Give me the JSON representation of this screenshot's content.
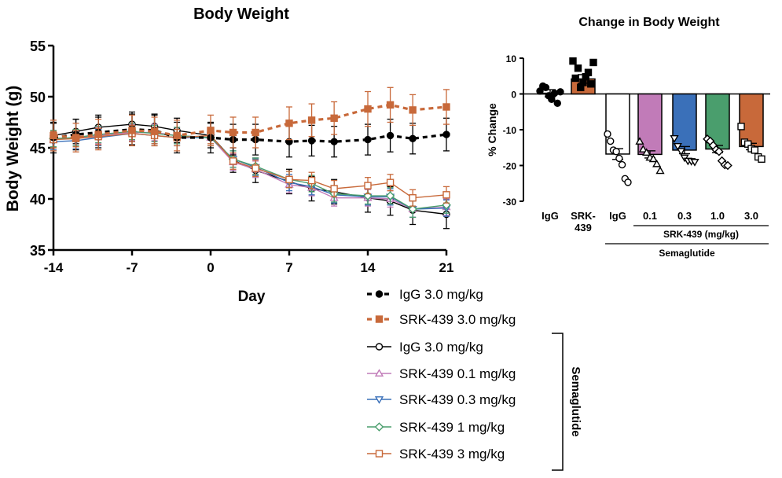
{
  "chart_data": [
    {
      "type": "line",
      "title": "Body Weight",
      "xlabel": "Day",
      "ylabel": "Body Weight (g)",
      "xlim": [
        -14,
        21
      ],
      "ylim": [
        35,
        55
      ],
      "xticks": [
        -14,
        -7,
        0,
        7,
        14,
        21
      ],
      "xtick_labels": [
        "-14",
        "-7",
        "0",
        "7",
        "14",
        "21"
      ],
      "yticks": [
        35,
        40,
        45,
        50,
        55
      ],
      "ytick_labels": [
        "35",
        "40",
        "45",
        "50",
        "55"
      ],
      "x": [
        -14,
        -12,
        -10,
        -7,
        -5,
        -3,
        0,
        2,
        4,
        7,
        9,
        11,
        14,
        16,
        18,
        21
      ],
      "legend_group_label": "Semaglutide",
      "series": [
        {
          "name": "IgG 3.0 mg/kg",
          "color": "#000000",
          "style": "dashed",
          "marker": "filled-circle",
          "values": [
            46.0,
            46.3,
            46.5,
            46.8,
            46.7,
            46.0,
            46.0,
            45.8,
            45.8,
            45.6,
            45.7,
            45.6,
            45.8,
            46.2,
            45.9,
            46.3
          ],
          "errors": [
            1.5,
            1.5,
            1.5,
            1.5,
            1.5,
            1.5,
            1.5,
            1.5,
            1.5,
            1.5,
            1.5,
            1.5,
            1.5,
            1.6,
            1.5,
            1.6
          ]
        },
        {
          "name": "SRK-439 3.0 mg/kg",
          "color": "#c8693a",
          "style": "dashed",
          "marker": "filled-square",
          "values": [
            46.2,
            46.0,
            46.3,
            46.7,
            46.6,
            46.2,
            46.7,
            46.5,
            46.5,
            47.4,
            47.7,
            47.9,
            48.8,
            49.2,
            48.7,
            49.0
          ],
          "errors": [
            1.5,
            1.4,
            1.5,
            1.5,
            1.4,
            1.5,
            1.5,
            1.5,
            1.5,
            1.6,
            1.6,
            1.6,
            1.7,
            1.7,
            1.5,
            1.7
          ]
        },
        {
          "name": "IgG 3.0 mg/kg",
          "color": "#000000",
          "style": "solid",
          "marker": "open-circle",
          "values": [
            46.2,
            46.6,
            47.0,
            47.3,
            47.1,
            46.7,
            46.2,
            43.8,
            42.8,
            41.7,
            41.0,
            40.7,
            40.1,
            39.8,
            38.9,
            38.5
          ],
          "errors": [
            1.2,
            1.2,
            1.2,
            1.2,
            1.2,
            1.2,
            1.2,
            1.2,
            1.2,
            1.2,
            1.2,
            1.2,
            1.4,
            1.4,
            1.4,
            1.4
          ]
        },
        {
          "name": "SRK-439 0.1 mg/kg",
          "color": "#c17bb8",
          "style": "solid",
          "marker": "open-triangle-up",
          "values": [
            45.8,
            46.0,
            46.2,
            46.5,
            46.5,
            46.2,
            46.0,
            43.6,
            42.9,
            41.4,
            41.1,
            40.1,
            40.1,
            40.0,
            39.0,
            39.2
          ],
          "errors": [
            0.8,
            0.8,
            0.8,
            0.8,
            0.8,
            0.8,
            0.8,
            0.8,
            0.8,
            0.8,
            0.8,
            0.8,
            0.8,
            0.8,
            0.8,
            0.8
          ]
        },
        {
          "name": "SRK-439 0.3 mg/kg",
          "color": "#3a70b9",
          "style": "solid",
          "marker": "open-triangle-down",
          "values": [
            45.6,
            45.7,
            46.0,
            46.4,
            46.2,
            46.0,
            46.0,
            43.9,
            43.1,
            41.6,
            41.2,
            40.4,
            40.2,
            40.2,
            39.0,
            39.1
          ],
          "errors": [
            0.8,
            0.8,
            0.8,
            0.8,
            0.8,
            0.8,
            0.8,
            0.8,
            0.8,
            0.8,
            0.8,
            0.8,
            0.8,
            0.8,
            0.8,
            0.8
          ]
        },
        {
          "name": "SRK-439 1 mg/kg",
          "color": "#4a9e6d",
          "style": "solid",
          "marker": "open-diamond",
          "values": [
            45.9,
            46.0,
            46.3,
            46.6,
            46.4,
            46.2,
            46.0,
            43.9,
            43.2,
            41.9,
            41.5,
            40.5,
            40.3,
            40.3,
            39.0,
            39.4
          ],
          "errors": [
            0.8,
            0.8,
            0.8,
            0.8,
            0.8,
            0.8,
            0.8,
            0.8,
            0.8,
            0.8,
            0.8,
            0.8,
            0.8,
            0.8,
            0.8,
            0.8
          ]
        },
        {
          "name": "SRK-439 3 mg/kg",
          "color": "#c8693a",
          "style": "solid",
          "marker": "open-square",
          "values": [
            45.8,
            45.9,
            46.1,
            46.4,
            46.2,
            46.0,
            46.2,
            43.7,
            43.0,
            41.9,
            41.8,
            41.0,
            41.3,
            41.6,
            40.1,
            40.4
          ],
          "errors": [
            0.8,
            0.8,
            0.8,
            0.8,
            0.8,
            0.8,
            0.8,
            0.8,
            0.8,
            0.8,
            0.8,
            0.8,
            0.8,
            0.8,
            0.8,
            0.8
          ]
        }
      ]
    },
    {
      "type": "bar",
      "title": "Change in Body Weight",
      "ylabel": "% Change",
      "ylim": [
        -30,
        10
      ],
      "yticks": [
        10,
        0,
        -10,
        -20,
        -30
      ],
      "ytick_labels": [
        "10",
        "0",
        "-10",
        "-20",
        "-30"
      ],
      "categories": [
        "IgG",
        "SRK-\n439",
        "IgG",
        "0.1",
        "0.3",
        "1.0",
        "3.0"
      ],
      "group_labels": {
        "srk_dose": "SRK-439 (mg/kg)",
        "semaglutide": "Semaglutide"
      },
      "bars": [
        {
          "category": "IgG",
          "value": 0.2,
          "error": 1.0,
          "fill": "#ffffff",
          "marker": "filled-circle",
          "points": [
            0.8,
            2.2,
            1.8,
            -0.5,
            -1.5,
            0.2,
            -2.6,
            0.6
          ]
        },
        {
          "category": "SRK-439",
          "value": 4.2,
          "error": 1.2,
          "fill": "#c8693a",
          "marker": "filled-square",
          "points": [
            9.2,
            4.4,
            7.2,
            1.8,
            3.2,
            4.8,
            6.0,
            2.8,
            8.8
          ]
        },
        {
          "category": "IgG",
          "value": -16.8,
          "error": 1.5,
          "fill": "#ffffff",
          "marker": "open-circle",
          "points": [
            -11.2,
            -13.2,
            -15.7,
            -16.1,
            -18.0,
            -19.8,
            -23.7,
            -24.7
          ]
        },
        {
          "category": "0.1",
          "value": -16.9,
          "error": 1.0,
          "fill": "#c17bb8",
          "marker": "open-triangle-up",
          "points": [
            -13.3,
            -15.5,
            -16.4,
            -17.8,
            -18.2,
            -19.6,
            -21.5
          ]
        },
        {
          "category": "0.3",
          "value": -15.7,
          "error": 1.0,
          "fill": "#3a70b9",
          "marker": "open-triangle-down",
          "points": [
            -12.4,
            -14.6,
            -16.0,
            -17.8,
            -18.7,
            -18.8,
            -19.0
          ]
        },
        {
          "category": "1.0",
          "value": -15.4,
          "error": 1.0,
          "fill": "#4a9e6d",
          "marker": "open-diamond",
          "points": [
            -12.6,
            -13.2,
            -14.4,
            -15.6,
            -16.1,
            -18.7,
            -19.8,
            -20.0
          ]
        },
        {
          "category": "3.0",
          "value": -14.7,
          "error": 0.9,
          "fill": "#c8693a",
          "marker": "open-square",
          "points": [
            -9.1,
            -13.5,
            -14.0,
            -15.3,
            -15.7,
            -17.6,
            -18.2
          ]
        }
      ]
    }
  ]
}
